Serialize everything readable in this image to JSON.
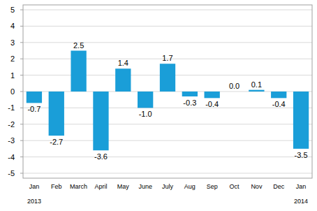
{
  "chart_data": {
    "type": "bar",
    "categories": [
      "Jan",
      "Feb",
      "March",
      "April",
      "May",
      "June",
      "July",
      "Aug",
      "Sep",
      "Oct",
      "Nov",
      "Dec",
      "Jan"
    ],
    "values": [
      -0.7,
      -2.7,
      2.5,
      -3.6,
      1.4,
      -1.0,
      1.7,
      -0.3,
      -0.4,
      0.0,
      0.1,
      -0.4,
      -3.5
    ],
    "value_labels": [
      "-0.7",
      "-2.7",
      "2.5",
      "-3.6",
      "1.4",
      "-1.0",
      "1.7",
      "-0.3",
      "-0.4",
      "0.0",
      "0.1",
      "-0.4",
      "-3.5"
    ],
    "data_labels": true,
    "annotations": [
      "2013",
      "2014"
    ],
    "color": "#1a9ed8",
    "ylim": [
      -5.3,
      5.3
    ],
    "yticks": [
      -5,
      -4,
      -3,
      -2,
      -1,
      0,
      1,
      2,
      3,
      4,
      5
    ],
    "grid": true
  }
}
